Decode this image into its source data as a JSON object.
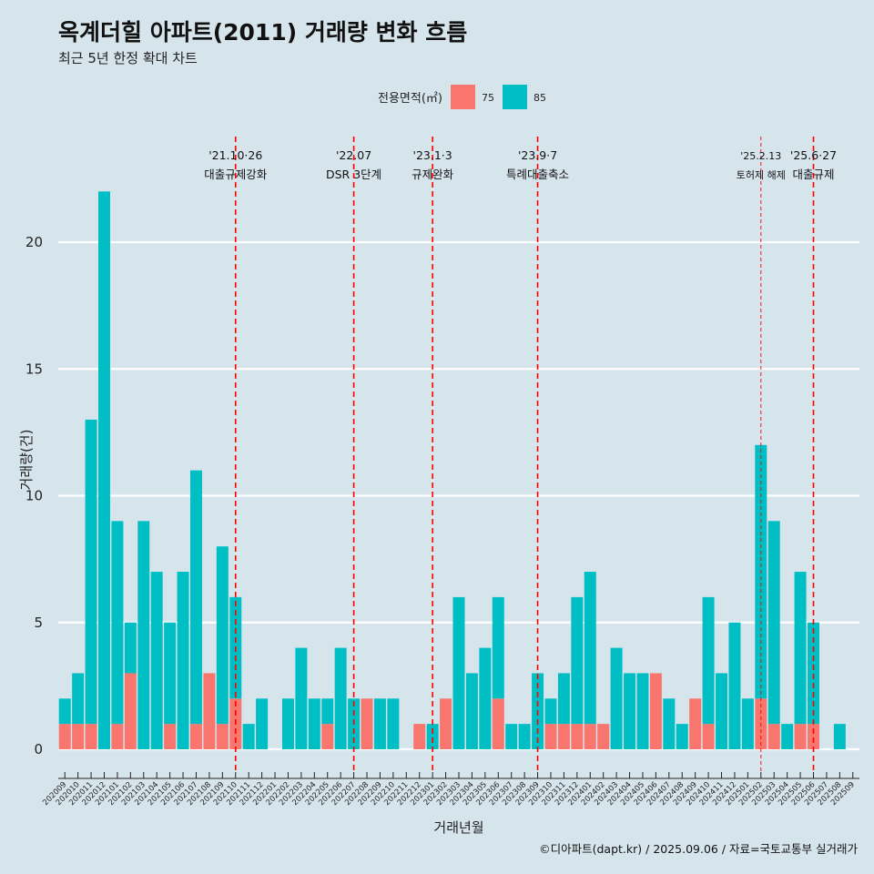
{
  "header": {
    "title": "옥계더힐 아파트(2011) 거래량 변화 흐름",
    "subtitle": "최근 5년 한정 확대 차트"
  },
  "footer": {
    "caption": "©디아파트(dapt.kr) / 2025.09.06 / 자료=국토교통부 실거래가"
  },
  "chart_data": {
    "type": "bar",
    "xlabel": "거래년월",
    "ylabel": "거래량(건)",
    "ylim": [
      -1,
      22.5
    ],
    "yticks": [
      0,
      5,
      10,
      15,
      20
    ],
    "grid": true,
    "legend": {
      "title": "전용면적(㎡)",
      "position": "top",
      "entries": [
        {
          "label": "75",
          "color": "#f8766d"
        },
        {
          "label": "85",
          "color": "#00bfc4"
        }
      ]
    },
    "categories": [
      "202009",
      "202010",
      "202011",
      "202012",
      "202101",
      "202102",
      "202103",
      "202104",
      "202105",
      "202106",
      "202107",
      "202108",
      "202109",
      "202110",
      "202111",
      "202112",
      "202201",
      "202202",
      "202203",
      "202204",
      "202205",
      "202206",
      "202207",
      "202208",
      "202209",
      "202210",
      "202211",
      "202212",
      "202301",
      "202302",
      "202303",
      "202304",
      "202305",
      "202306",
      "202307",
      "202308",
      "202309",
      "202310",
      "202311",
      "202312",
      "202401",
      "202402",
      "202403",
      "202404",
      "202405",
      "202406",
      "202407",
      "202408",
      "202409",
      "202410",
      "202411",
      "202412",
      "202501",
      "202502",
      "202503",
      "202504",
      "202505",
      "202506",
      "202507",
      "202508",
      "202509"
    ],
    "series": [
      {
        "name": "75",
        "color": "#f8766d",
        "values": [
          1,
          1,
          1,
          0,
          1,
          3,
          0,
          0,
          1,
          0,
          1,
          3,
          1,
          2,
          0,
          0,
          0,
          0,
          0,
          0,
          1,
          0,
          0,
          2,
          0,
          0,
          0,
          1,
          0,
          2,
          0,
          0,
          0,
          2,
          0,
          0,
          0,
          1,
          1,
          1,
          1,
          1,
          0,
          0,
          0,
          3,
          0,
          0,
          2,
          1,
          0,
          0,
          0,
          2,
          1,
          0,
          1,
          1,
          0,
          0,
          0
        ]
      },
      {
        "name": "85",
        "color": "#00bfc4",
        "values": [
          1,
          2,
          12,
          22,
          8,
          2,
          9,
          7,
          4,
          7,
          10,
          0,
          7,
          4,
          1,
          2,
          0,
          2,
          4,
          2,
          1,
          4,
          2,
          0,
          2,
          2,
          0,
          0,
          1,
          0,
          6,
          3,
          4,
          4,
          1,
          1,
          3,
          1,
          2,
          5,
          6,
          0,
          4,
          3,
          3,
          0,
          2,
          1,
          0,
          5,
          3,
          5,
          2,
          10,
          8,
          1,
          6,
          4,
          0,
          1,
          0
        ]
      }
    ],
    "events": [
      {
        "date": "'21.10·26",
        "label": "대출규제강화",
        "at": "202110",
        "style": "major"
      },
      {
        "date": "'22.07",
        "label": "DSR 3단계",
        "at": "202207",
        "style": "major"
      },
      {
        "date": "'23.1·3",
        "label": "규제완화",
        "at": "202301",
        "style": "major"
      },
      {
        "date": "'23.9·7",
        "label": "특례대출축소",
        "at": "202309",
        "style": "major"
      },
      {
        "date": "'25.2.13",
        "label": "토허제 해제",
        "at": "202502",
        "style": "minor"
      },
      {
        "date": "'25.6·27",
        "label": "대출규제",
        "at": "202506",
        "style": "major"
      }
    ]
  }
}
